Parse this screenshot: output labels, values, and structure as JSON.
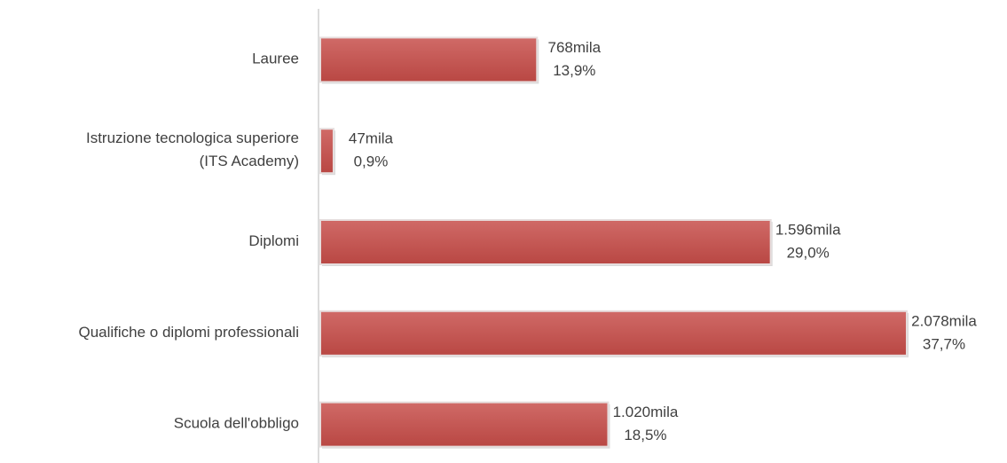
{
  "chart_data": {
    "type": "bar",
    "orientation": "horizontal",
    "categories": [
      "Lauree",
      "Istruzione tecnologica superiore\n(ITS Academy)",
      "Diplomi",
      "Qualifiche o diplomi professionali",
      "Scuola dell'obbligo"
    ],
    "values": [
      768,
      47,
      1596,
      2078,
      1020
    ],
    "value_labels": [
      "768mila",
      "47mila",
      "1.596mila",
      "2.078mila",
      "1.020mila"
    ],
    "percentages": [
      13.9,
      0.9,
      29.0,
      37.7,
      18.5
    ],
    "percentage_labels": [
      "13,9%",
      "0,9%",
      "29,0%",
      "37,7%",
      "18,5%"
    ],
    "color": "#c0504d"
  }
}
